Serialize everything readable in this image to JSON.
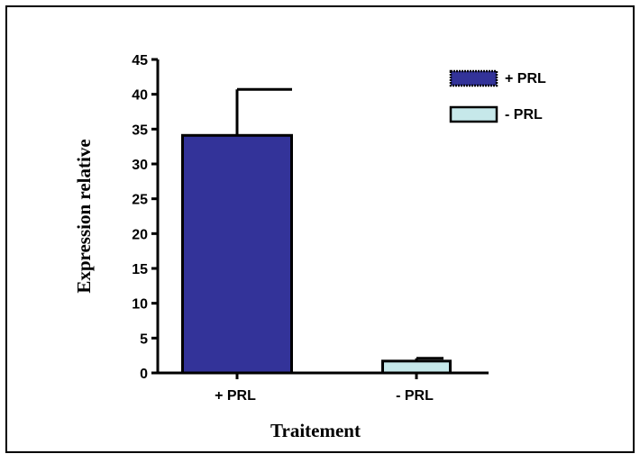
{
  "chart_data": {
    "type": "bar",
    "categories": [
      "+ PRL",
      "- PRL"
    ],
    "values": [
      34.1,
      1.7
    ],
    "errors": [
      6.6,
      0.4
    ],
    "xlabel": "Traitement",
    "ylabel": "Expression relative",
    "ylim": [
      0,
      45
    ],
    "yticks": [
      0,
      5,
      10,
      15,
      20,
      25,
      30,
      35,
      40,
      45
    ],
    "legend": {
      "placement": "top-right",
      "entries": [
        "+ PRL",
        "- PRL"
      ]
    },
    "colors": [
      "#333399",
      "#c6e8ea"
    ],
    "grid": false
  }
}
